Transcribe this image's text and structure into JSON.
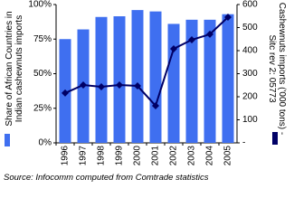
{
  "chart_data": {
    "type": "combo",
    "categories": [
      "1996",
      "1997",
      "1998",
      "1999",
      "2000",
      "2001",
      "2002",
      "2003",
      "2004",
      "2005"
    ],
    "series": [
      {
        "name": "Share of African Countries in Indian cashewnuts imports",
        "type": "bar",
        "color": "#3f6ff0",
        "values": [
          75,
          82,
          91,
          91.5,
          96,
          95,
          86,
          89,
          89,
          93
        ]
      },
      {
        "name": "Cashewnuts imports ('000 tons) - Sitc rev 2: 05773",
        "type": "line",
        "axis": "y2",
        "color": "#000066",
        "values": [
          216,
          251,
          243,
          251,
          247,
          161,
          408,
          447,
          471,
          545
        ]
      }
    ],
    "ylim": [
      0,
      100
    ],
    "yticks": [
      {
        "value": 0,
        "label": "0%"
      },
      {
        "value": 25,
        "label": "25%"
      },
      {
        "value": 50,
        "label": "50%"
      },
      {
        "value": 75,
        "label": "75%"
      },
      {
        "value": 100,
        "label": "100%"
      }
    ],
    "y2lim": [
      0,
      600
    ],
    "y2ticks": [
      {
        "value": 0,
        "label": "-"
      },
      100,
      200,
      300,
      400,
      500,
      600
    ],
    "grid": false,
    "source": "Source: Infocomm computed from Comtrade statistics"
  }
}
